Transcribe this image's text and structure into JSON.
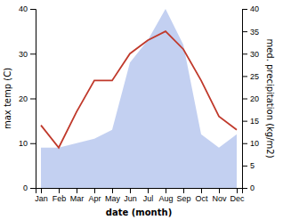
{
  "chart_data": {
    "type": "line",
    "xlabel": "date (month)",
    "ylabel": "max temp (C)",
    "y2label": "med. precipitation (kg/m2)",
    "categories": [
      "Jan",
      "Feb",
      "Mar",
      "Apr",
      "May",
      "Jun",
      "Jul",
      "Aug",
      "Sep",
      "Oct",
      "Nov",
      "Dec"
    ],
    "series": [
      {
        "type": "area",
        "axis": "y2",
        "color": "#b8c8ee",
        "values": [
          9,
          9,
          10,
          11,
          13,
          28,
          33,
          40,
          32,
          12,
          9,
          12
        ]
      },
      {
        "type": "line",
        "color": "#c0392b",
        "values": [
          14,
          9,
          17,
          24,
          24,
          30,
          33,
          35,
          31,
          24,
          16,
          13
        ]
      }
    ],
    "ylim": [
      0,
      40
    ],
    "yticks": [
      0,
      10,
      20,
      30,
      40
    ],
    "y2lim": [
      0,
      40
    ],
    "y2ticks": [
      0,
      5,
      10,
      15,
      20,
      25,
      30,
      35,
      40
    ],
    "grid": false
  }
}
